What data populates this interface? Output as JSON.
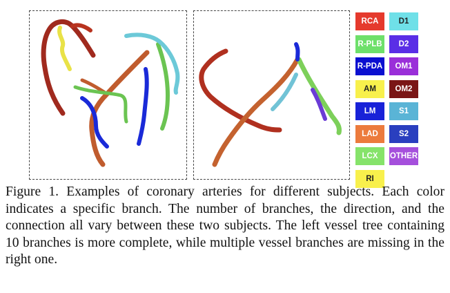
{
  "legend": [
    {
      "label": "RCA",
      "color": "#e53a2d",
      "text_color": "#ffffff"
    },
    {
      "label": "D1",
      "color": "#6fe0e8",
      "text_color": "#222222"
    },
    {
      "label": "R-PLB",
      "color": "#6ee06a",
      "text_color": "#ffffff"
    },
    {
      "label": "D2",
      "color": "#5a2ee6",
      "text_color": "#ffffff"
    },
    {
      "label": "R-PDA",
      "color": "#0b0fd0",
      "text_color": "#ffffff"
    },
    {
      "label": "OM1",
      "color": "#9a2fd9",
      "text_color": "#ffffff"
    },
    {
      "label": "AM",
      "color": "#f8f04c",
      "text_color": "#222222"
    },
    {
      "label": "OM2",
      "color": "#7a1616",
      "text_color": "#ffffff"
    },
    {
      "label": "LM",
      "color": "#1822d8",
      "text_color": "#ffffff"
    },
    {
      "label": "S1",
      "color": "#5ab4d6",
      "text_color": "#ffffff"
    },
    {
      "label": "LAD",
      "color": "#ec7b3d",
      "text_color": "#ffffff"
    },
    {
      "label": "S2",
      "color": "#2a3fbf",
      "text_color": "#ffffff"
    },
    {
      "label": "LCX",
      "color": "#86e36a",
      "text_color": "#ffffff"
    },
    {
      "label": "OTHER",
      "color": "#a54fdc",
      "text_color": "#ffffff"
    },
    {
      "label": "RI",
      "color": "#f8f04c",
      "text_color": "#222222"
    }
  ],
  "caption": "Figure 1. Examples of coronary arteries for different subjects. Each color indicates a specific branch. The number of branches, the direction, and the connection all vary between these two subjects. The left vessel tree containing 10 branches is more complete, while multiple vessel branches are missing in the right one."
}
